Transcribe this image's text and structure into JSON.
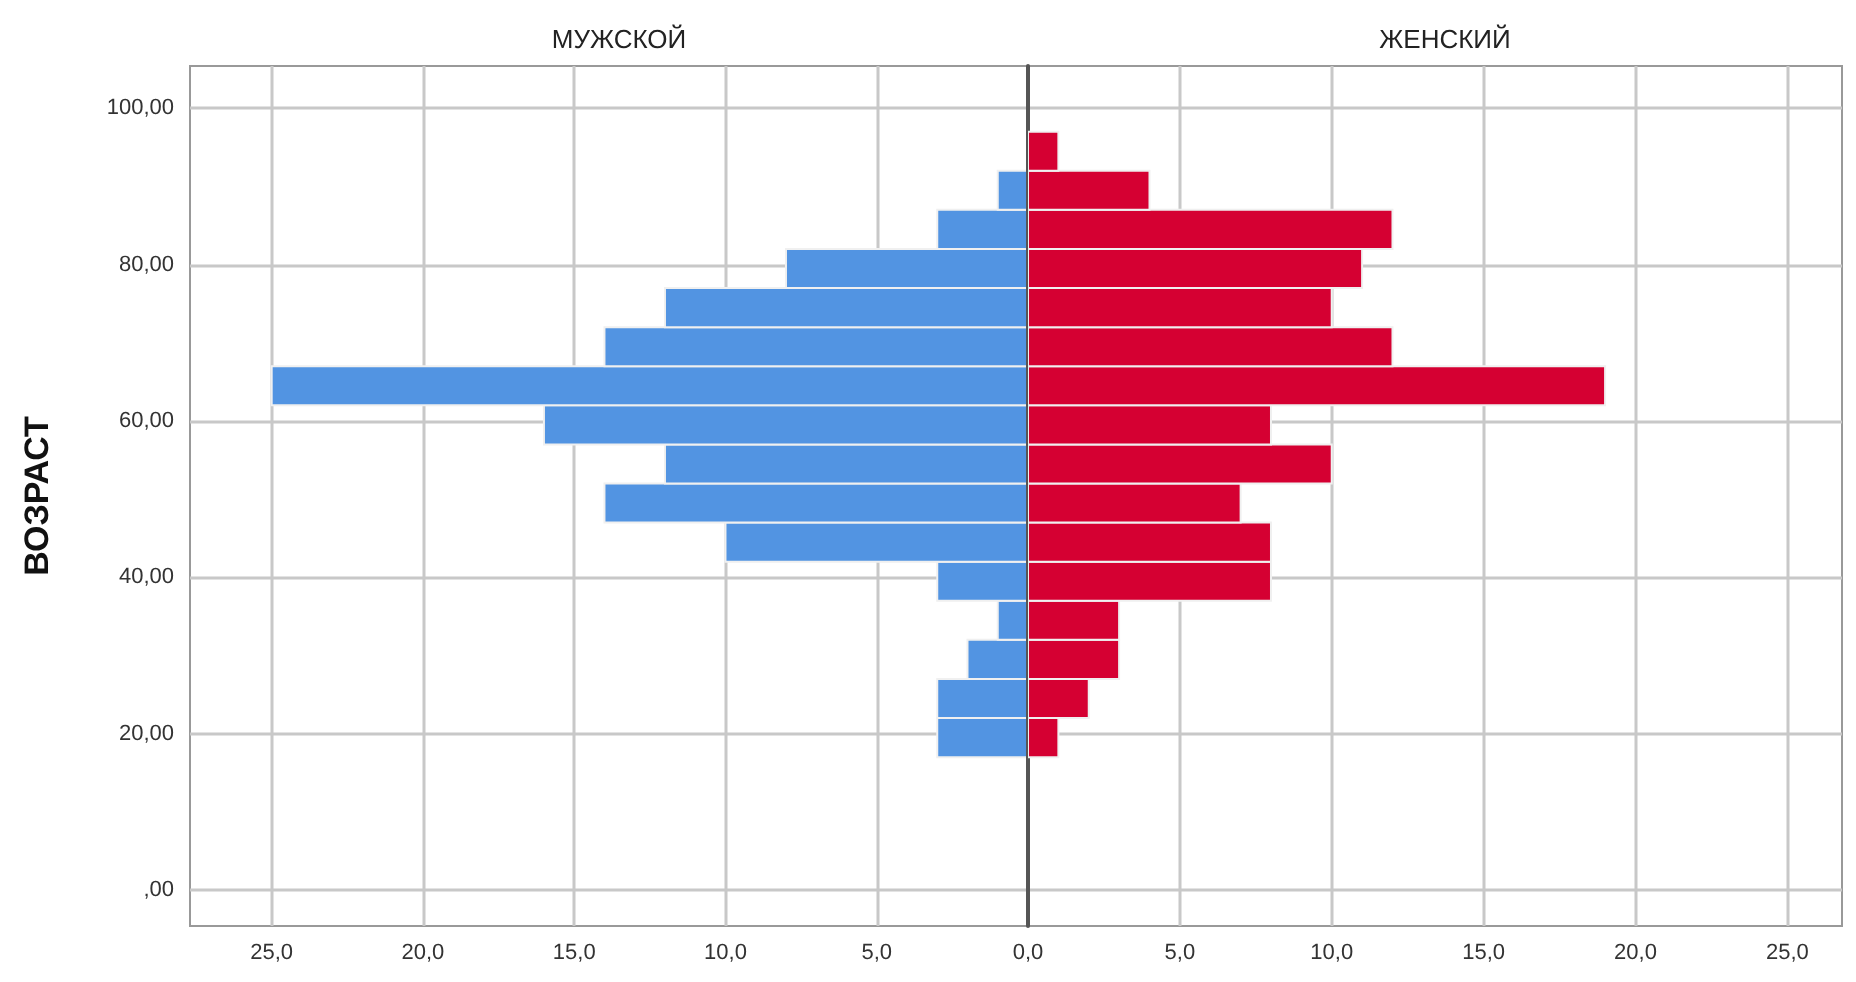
{
  "chart_data": [
    {
      "type": "histogram",
      "orientation": "horizontal",
      "title": "МУЖСКОЙ",
      "ylabel": "ВОЗРАСТ",
      "color": "#5294e2",
      "bins": [
        17,
        22,
        27,
        32,
        37,
        42,
        47,
        52,
        57,
        62,
        67,
        72,
        77,
        82,
        87,
        92,
        97
      ],
      "values": [
        3,
        3,
        2,
        1,
        3,
        10,
        14,
        12,
        16,
        25,
        14,
        12,
        8,
        3,
        1,
        0
      ],
      "xlim": [
        27.7,
        0
      ],
      "xticks": [
        {
          "value": 25,
          "label": "25,0"
        },
        {
          "value": 20,
          "label": "20,0"
        },
        {
          "value": 15,
          "label": "15,0"
        },
        {
          "value": 10,
          "label": "10,0"
        },
        {
          "value": 5,
          "label": "5,0"
        },
        {
          "value": 0,
          "label": null
        }
      ],
      "ylim": [
        -4.6,
        105.4
      ],
      "yticks": [
        {
          "value": 0,
          "label": ",00"
        },
        {
          "value": 20,
          "label": "20,00"
        },
        {
          "value": 40,
          "label": "40,00"
        },
        {
          "value": 60,
          "label": "60,00"
        },
        {
          "value": 80,
          "label": "80,00"
        },
        {
          "value": 100,
          "label": "100,00"
        }
      ],
      "grid": true
    },
    {
      "type": "histogram",
      "orientation": "horizontal",
      "title": "ЖЕНСКИЙ",
      "color": "#d50032",
      "bins": [
        17,
        22,
        27,
        32,
        37,
        42,
        47,
        52,
        57,
        62,
        67,
        72,
        77,
        82,
        87,
        92,
        97
      ],
      "values": [
        1,
        2,
        3,
        3,
        8,
        8,
        7,
        10,
        8,
        19,
        12,
        10,
        11,
        12,
        4,
        1
      ],
      "xlim": [
        0,
        26.8
      ],
      "xticks": [
        {
          "value": 0,
          "label": "0,0"
        },
        {
          "value": 5,
          "label": "5,0"
        },
        {
          "value": 10,
          "label": "10,0"
        },
        {
          "value": 15,
          "label": "15,0"
        },
        {
          "value": 20,
          "label": "20,0"
        },
        {
          "value": 25,
          "label": "25,0"
        }
      ],
      "ylim": [
        -4.6,
        105.4
      ],
      "yticks": [
        0,
        20,
        40,
        60,
        80,
        100
      ],
      "tick_labels": "x",
      "grid": true
    }
  ]
}
